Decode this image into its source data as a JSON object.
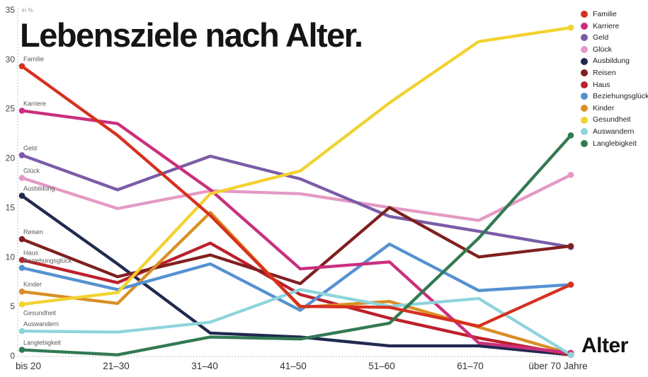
{
  "title": "Lebensziele nach Alter.",
  "axis": {
    "unit_label": "in %",
    "x_title": "Alter"
  },
  "chart_data": {
    "type": "line",
    "title": "Lebensziele nach Alter.",
    "xlabel": "Alter",
    "ylabel": "in %",
    "ylim": [
      0,
      35
    ],
    "yticks": [
      0,
      5,
      10,
      15,
      20,
      25,
      30,
      35
    ],
    "grid": false,
    "legend_position": "top-right",
    "categories": [
      "bis 20",
      "21–30",
      "31–40",
      "41–50",
      "51–60",
      "61–70",
      "über 70 Jahre"
    ],
    "series": [
      {
        "name": "Familie",
        "color": "#d6301f",
        "label_placement": "above",
        "values": [
          29.3,
          22.3,
          14.2,
          5.0,
          4.9,
          3.0,
          7.2
        ]
      },
      {
        "name": "Karriere",
        "color": "#ca2f7d",
        "label_placement": "above",
        "values": [
          24.8,
          23.5,
          16.8,
          8.8,
          9.5,
          1.3,
          0.3
        ]
      },
      {
        "name": "Geld",
        "color": "#7a5ca8",
        "label_placement": "above",
        "values": [
          20.3,
          16.8,
          20.2,
          17.9,
          14.1,
          12.6,
          11.0
        ]
      },
      {
        "name": "Glück",
        "color": "#e39ac4",
        "label_placement": "above",
        "values": [
          18.0,
          14.9,
          16.7,
          16.4,
          15.0,
          13.7,
          18.3
        ]
      },
      {
        "name": "Ausbildung",
        "color": "#20294f",
        "label_placement": "above",
        "values": [
          16.2,
          9.3,
          2.3,
          1.9,
          1.0,
          1.0,
          0.1
        ]
      },
      {
        "name": "Reisen",
        "color": "#801f1f",
        "label_placement": "above",
        "values": [
          11.8,
          8.0,
          10.2,
          7.3,
          15.0,
          10.0,
          11.1
        ]
      },
      {
        "name": "Haus",
        "color": "#bc202b",
        "label_placement": "above",
        "values": [
          9.7,
          7.4,
          11.4,
          6.2,
          3.8,
          1.8,
          0.1
        ]
      },
      {
        "name": "Beziehungsglück",
        "color": "#5591d2",
        "label_placement": "above",
        "values": [
          8.9,
          6.7,
          9.3,
          4.6,
          11.3,
          6.6,
          7.2
        ]
      },
      {
        "name": "Kinder",
        "color": "#d98f25",
        "label_placement": "above",
        "values": [
          6.5,
          5.3,
          14.5,
          4.9,
          5.5,
          2.9,
          0.2
        ]
      },
      {
        "name": "Gesundheit",
        "color": "#f2d230",
        "label_placement": "below",
        "values": [
          5.2,
          6.4,
          16.4,
          18.7,
          25.6,
          31.8,
          33.2
        ]
      },
      {
        "name": "Auswandern",
        "color": "#8fd4dd",
        "label_placement": "above",
        "values": [
          2.5,
          2.4,
          3.4,
          6.7,
          5.0,
          5.8,
          0.1
        ]
      },
      {
        "name": "Langlebigkeit",
        "color": "#337a52",
        "label_placement": "above",
        "values": [
          0.6,
          0.1,
          1.9,
          1.7,
          3.3,
          11.9,
          22.3
        ]
      }
    ]
  }
}
